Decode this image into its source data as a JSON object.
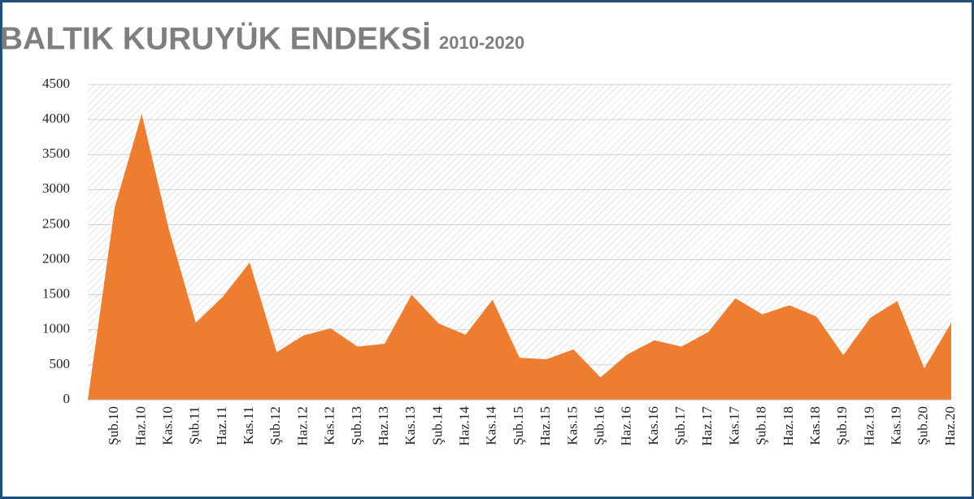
{
  "chart_data": {
    "type": "area",
    "title": "BALTIK KURUYÜK ENDEKSİ",
    "subtitle": "2010-2020",
    "categories": [
      null,
      "Şub.10",
      "Haz.10",
      "Kas.10",
      "Şub.11",
      "Haz.11",
      "Kas.11",
      "Şub.12",
      "Haz.12",
      "Kas.12",
      "Şub.13",
      "Haz.13",
      "Kas.13",
      "Şub.14",
      "Haz.14",
      "Kas.14",
      "Şub.15",
      "Haz.15",
      "Kas.15",
      "Şub.16",
      "Haz.16",
      "Kas.16",
      "Şub.17",
      "Haz.17",
      "Kas.17",
      "Şub.18",
      "Haz.18",
      "Kas.18",
      "Şub.19",
      "Haz.19",
      "Kas.19",
      "Şub.20",
      "Haz.20"
    ],
    "values": [
      0,
      2750,
      4080,
      2440,
      1100,
      1470,
      1960,
      680,
      920,
      1020,
      760,
      800,
      1500,
      1090,
      930,
      1430,
      600,
      580,
      720,
      320,
      650,
      850,
      760,
      970,
      1450,
      1220,
      1350,
      1190,
      640,
      1170,
      1410,
      450,
      1100
    ],
    "color": "#ed7d31",
    "ylim": [
      0,
      4500
    ],
    "yticks": [
      0,
      500,
      1000,
      1500,
      2000,
      2500,
      3000,
      3500,
      4000,
      4500
    ],
    "grid": true
  }
}
